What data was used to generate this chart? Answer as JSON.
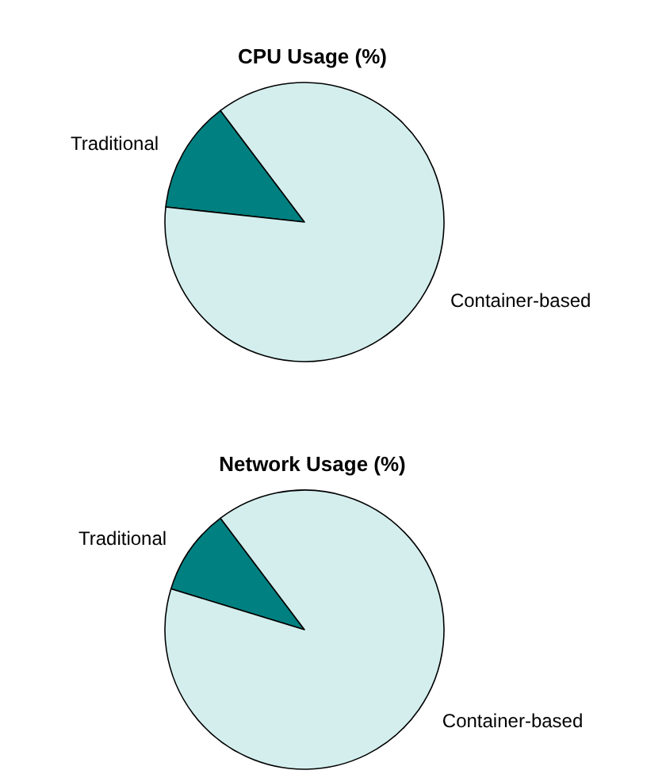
{
  "chart_data": [
    {
      "type": "pie",
      "title": "CPU Usage (%)",
      "categories": [
        "Traditional",
        "Container-based"
      ],
      "values": [
        13,
        87
      ],
      "colors": [
        "#008080",
        "#d4eeee"
      ]
    },
    {
      "type": "pie",
      "title": "Network Usage (%)",
      "categories": [
        "Traditional",
        "Container-based"
      ],
      "values": [
        10,
        90
      ],
      "colors": [
        "#008080",
        "#d4eeee"
      ]
    }
  ]
}
